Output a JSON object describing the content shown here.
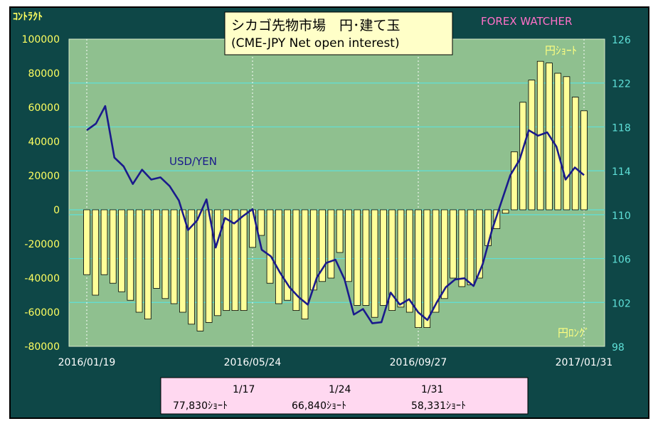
{
  "chart_data": {
    "type": "bar",
    "title": "シカゴ先物市場　円･建て玉",
    "subtitle": "(CME-JPY Net open interest)",
    "brand": "FOREX WATCHER",
    "ylabel_left": "ｺﾝﾄﾗｸﾄ",
    "ylim_left": [
      -80000,
      100000
    ],
    "yticks_left": [
      "100000",
      "80000",
      "60000",
      "40000",
      "20000",
      "0",
      "-20000",
      "-40000",
      "-60000",
      "-80000"
    ],
    "ylim_right": [
      98,
      126
    ],
    "yticks_right": [
      "126",
      "122",
      "118",
      "114",
      "110",
      "106",
      "102",
      "98"
    ],
    "label_short": "円ｼｮｰﾄ",
    "label_long": "円ﾛﾝｸﾞ",
    "x_ticks": [
      "2016/01/19",
      "2016/05/24",
      "2016/09/27",
      "2017/01/31"
    ],
    "grid": true,
    "series": [
      {
        "role": "bars",
        "values": [
          -38000,
          -50000,
          -38000,
          -43000,
          -48000,
          -53000,
          -60000,
          -64000,
          -46000,
          -52000,
          -55000,
          -60000,
          -67000,
          -71000,
          -66000,
          -62000,
          -59000,
          -59000,
          -59000,
          -22000,
          -15000,
          -43000,
          -55000,
          -53000,
          -59000,
          -64000,
          -47000,
          -42000,
          -40000,
          -25000,
          -42000,
          -56000,
          -56000,
          -63000,
          -56000,
          -59000,
          -57000,
          -60000,
          -69000,
          -69000,
          -60000,
          -52000,
          -40000,
          -45000,
          -44000,
          -40000,
          -21000,
          -11000,
          -2000,
          34000,
          63000,
          76000,
          87000,
          86000,
          80000,
          78000,
          66000,
          58000
        ]
      },
      {
        "role": "line",
        "name": "USD/YEN",
        "values": [
          117.7,
          118.3,
          119.9,
          115.2,
          114.4,
          112.8,
          114.1,
          113.2,
          113.4,
          112.6,
          111.3,
          108.6,
          109.5,
          111.4,
          107.0,
          109.7,
          109.2,
          109.9,
          110.5,
          106.8,
          106.2,
          104.7,
          103.4,
          102.5,
          101.8,
          104.3,
          105.6,
          105.9,
          104.1,
          100.9,
          101.4,
          100.1,
          100.2,
          102.9,
          101.8,
          102.3,
          101.1,
          100.4,
          102.0,
          103.4,
          104.1,
          104.2,
          103.5,
          105.5,
          108.6,
          111.1,
          113.6,
          115.0,
          117.7,
          117.2,
          117.5,
          116.2,
          113.2,
          114.3,
          113.6
        ]
      }
    ]
  },
  "footer": {
    "dates": [
      "1/17",
      "1/24",
      "1/31"
    ],
    "values": [
      "77,830ｼｮｰﾄ",
      "66,840ｼｮｰﾄ",
      "58,331ｼｮｰﾄ"
    ]
  }
}
